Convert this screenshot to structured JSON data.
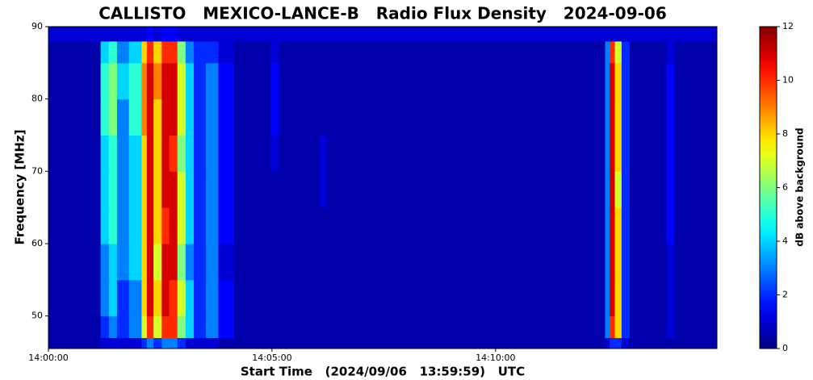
{
  "chart_data": {
    "type": "heatmap",
    "title": "CALLISTO   MEXICO-LANCE-B   Radio Flux Density   2024-09-06",
    "x_label": "Start Time   (2024/09/06   13:59:59)   UTC",
    "y_label": "Frequency [MHz]",
    "colorbar_label": "dB above background",
    "colormap": "jet",
    "x": [
      0,
      70,
      81,
      92,
      108,
      125,
      132,
      141,
      152,
      162,
      173,
      184,
      195,
      211,
      228,
      249,
      298,
      309,
      363,
      374,
      747,
      753,
      760,
      769,
      780,
      829,
      840,
      897
    ],
    "y": [
      45.5,
      47,
      50,
      55,
      60,
      65,
      70,
      75,
      80,
      85,
      88,
      90
    ],
    "z": [
      [
        0.5,
        1,
        1,
        1,
        1,
        2,
        3,
        2,
        3,
        3,
        2,
        1,
        1,
        1,
        0.5,
        0.5,
        0.5,
        0.5,
        0.5,
        0.5,
        1,
        2,
        2,
        1,
        0.5,
        0.5,
        0.5
      ],
      [
        0.5,
        2,
        3,
        2,
        3,
        7,
        10,
        7,
        10,
        10,
        6,
        4,
        2,
        3,
        1.5,
        0.5,
        0.5,
        0.5,
        0.5,
        0.5,
        3,
        10,
        8,
        2,
        0.5,
        1,
        0.5
      ],
      [
        0.5,
        3,
        4,
        2,
        3,
        8,
        11,
        8,
        11,
        10,
        7,
        4,
        2,
        3,
        1.5,
        0.5,
        0.5,
        0.5,
        0.5,
        0.5,
        3,
        11,
        8,
        2,
        0.5,
        1,
        0.5
      ],
      [
        0.5,
        3,
        4,
        3,
        4,
        8,
        11,
        7,
        11,
        11,
        6,
        3,
        2,
        3,
        1,
        0.5,
        0.5,
        0.5,
        0.5,
        0.5,
        3,
        11,
        8,
        2,
        0.5,
        1,
        0.5
      ],
      [
        0.5,
        4,
        5,
        3,
        4,
        8,
        11,
        8,
        10,
        11,
        7,
        4,
        2,
        3,
        1.5,
        0.5,
        0.5,
        0.5,
        0.5,
        0.5,
        3,
        11,
        8,
        2,
        0.5,
        1.5,
        0.5
      ],
      [
        0.5,
        4,
        5,
        3,
        4,
        8,
        11,
        8,
        11,
        11,
        7,
        4,
        2,
        3,
        1.5,
        0.5,
        0.5,
        0.5,
        1,
        0.5,
        3,
        11,
        7,
        2,
        0.5,
        1.5,
        0.5
      ],
      [
        0.5,
        4,
        5,
        3,
        4,
        8,
        11,
        8,
        11,
        10,
        6,
        4,
        2,
        3,
        1.5,
        0.5,
        1,
        0.5,
        1,
        0.5,
        3,
        11,
        8,
        2,
        0.5,
        1.5,
        0.5
      ],
      [
        0.5,
        5,
        6,
        3,
        5,
        9,
        11,
        8,
        11,
        11,
        7,
        4,
        2,
        3,
        1.5,
        0.5,
        1.5,
        0.5,
        0.5,
        0.5,
        3,
        11,
        8,
        2,
        0.5,
        1.5,
        0.5
      ],
      [
        0.5,
        5,
        6,
        4,
        5,
        9,
        11,
        9,
        11,
        11,
        7,
        4,
        2,
        3,
        1.5,
        0.5,
        1.5,
        0.5,
        0.5,
        0.5,
        3,
        11,
        8,
        2,
        0.5,
        1.5,
        0.5
      ],
      [
        0.5,
        4,
        5,
        3,
        4,
        8,
        10,
        8,
        10,
        10,
        6,
        3,
        2,
        2,
        1,
        0.5,
        1,
        0.5,
        0.5,
        0.5,
        3,
        10,
        7,
        2,
        0.5,
        1,
        0.5
      ],
      [
        1,
        1,
        1,
        1,
        1,
        1,
        1.5,
        1,
        1.5,
        1.5,
        1,
        1,
        1,
        1,
        1,
        1,
        1,
        1,
        1,
        1,
        1,
        1,
        1,
        1,
        1,
        1,
        1
      ]
    ],
    "xlim": [
      0,
      897
    ],
    "xticks": [
      {
        "value": 0,
        "label": "14:00:00"
      },
      {
        "value": 300,
        "label": "14:05:00"
      },
      {
        "value": 600,
        "label": "14:10:00"
      }
    ],
    "ylim": [
      45.5,
      90
    ],
    "yticks": [
      50,
      60,
      70,
      80,
      90
    ],
    "clim": [
      0,
      12
    ],
    "cticks": [
      0,
      2,
      4,
      6,
      8,
      10,
      12
    ]
  }
}
